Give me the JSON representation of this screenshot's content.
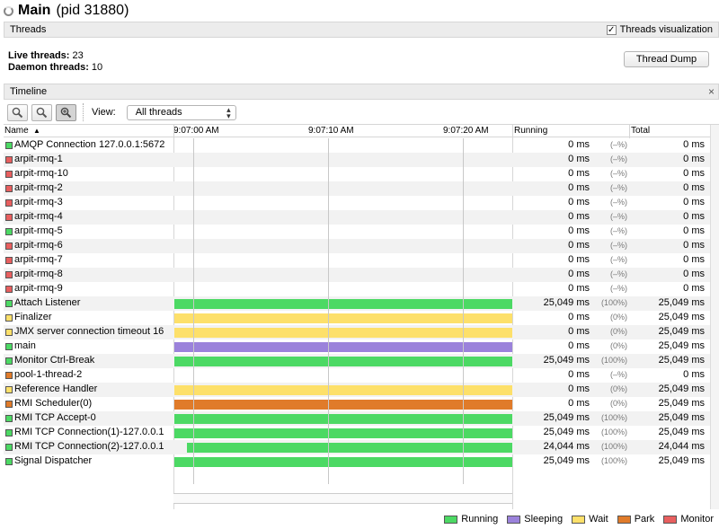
{
  "window": {
    "title": "Main",
    "pid": "(pid 31880)"
  },
  "threads_section": {
    "header": "Threads",
    "viz_checked": "✓",
    "viz_label": "Threads visualization",
    "live_label": "Live threads:",
    "live_value": "23",
    "daemon_label": "Daemon threads:",
    "daemon_value": "10",
    "thread_dump_label": "Thread Dump"
  },
  "timeline": {
    "header": "Timeline",
    "close_symbol": "×",
    "view_label": "View:",
    "view_value": "All threads",
    "columns": {
      "name": "Name",
      "running": "Running",
      "total": "Total"
    },
    "ticks": [
      "9:07:00 AM",
      "9:07:10 AM",
      "9:07:20 AM"
    ],
    "rows": [
      {
        "name": "AMQP Connection 127.0.0.1:5672",
        "state": "running",
        "running": "0 ms",
        "pct": "(–%)",
        "total": "0 ms",
        "bar": null
      },
      {
        "name": "arpit-rmq-1",
        "state": "monitor",
        "running": "0 ms",
        "pct": "(–%)",
        "total": "0 ms",
        "bar": null
      },
      {
        "name": "arpit-rmq-10",
        "state": "monitor",
        "running": "0 ms",
        "pct": "(–%)",
        "total": "0 ms",
        "bar": null
      },
      {
        "name": "arpit-rmq-2",
        "state": "monitor",
        "running": "0 ms",
        "pct": "(–%)",
        "total": "0 ms",
        "bar": null
      },
      {
        "name": "arpit-rmq-3",
        "state": "monitor",
        "running": "0 ms",
        "pct": "(–%)",
        "total": "0 ms",
        "bar": null
      },
      {
        "name": "arpit-rmq-4",
        "state": "monitor",
        "running": "0 ms",
        "pct": "(–%)",
        "total": "0 ms",
        "bar": null
      },
      {
        "name": "arpit-rmq-5",
        "state": "running",
        "running": "0 ms",
        "pct": "(–%)",
        "total": "0 ms",
        "bar": null
      },
      {
        "name": "arpit-rmq-6",
        "state": "monitor",
        "running": "0 ms",
        "pct": "(–%)",
        "total": "0 ms",
        "bar": null
      },
      {
        "name": "arpit-rmq-7",
        "state": "monitor",
        "running": "0 ms",
        "pct": "(–%)",
        "total": "0 ms",
        "bar": null
      },
      {
        "name": "arpit-rmq-8",
        "state": "monitor",
        "running": "0 ms",
        "pct": "(–%)",
        "total": "0 ms",
        "bar": null
      },
      {
        "name": "arpit-rmq-9",
        "state": "monitor",
        "running": "0 ms",
        "pct": "(–%)",
        "total": "0 ms",
        "bar": null
      },
      {
        "name": "Attach Listener",
        "state": "running",
        "running": "25,049 ms",
        "pct": "(100%)",
        "total": "25,049 ms",
        "bar": "running"
      },
      {
        "name": "Finalizer",
        "state": "wait",
        "running": "0 ms",
        "pct": "(0%)",
        "total": "25,049 ms",
        "bar": "wait"
      },
      {
        "name": "JMX server connection timeout 16",
        "state": "wait",
        "running": "0 ms",
        "pct": "(0%)",
        "total": "25,049 ms",
        "bar": "wait"
      },
      {
        "name": "main",
        "state": "running",
        "running": "0 ms",
        "pct": "(0%)",
        "total": "25,049 ms",
        "bar": "sleeping"
      },
      {
        "name": "Monitor Ctrl-Break",
        "state": "running",
        "running": "25,049 ms",
        "pct": "(100%)",
        "total": "25,049 ms",
        "bar": "running"
      },
      {
        "name": "pool-1-thread-2",
        "state": "park",
        "running": "0 ms",
        "pct": "(–%)",
        "total": "0 ms",
        "bar": null
      },
      {
        "name": "Reference Handler",
        "state": "wait",
        "running": "0 ms",
        "pct": "(0%)",
        "total": "25,049 ms",
        "bar": "wait"
      },
      {
        "name": "RMI Scheduler(0)",
        "state": "park",
        "running": "0 ms",
        "pct": "(0%)",
        "total": "25,049 ms",
        "bar": "park"
      },
      {
        "name": "RMI TCP Accept-0",
        "state": "running",
        "running": "25,049 ms",
        "pct": "(100%)",
        "total": "25,049 ms",
        "bar": "running"
      },
      {
        "name": "RMI TCP Connection(1)-127.0.0.1",
        "state": "running",
        "running": "25,049 ms",
        "pct": "(100%)",
        "total": "25,049 ms",
        "bar": "running"
      },
      {
        "name": "RMI TCP Connection(2)-127.0.0.1",
        "state": "running",
        "running": "24,044 ms",
        "pct": "(100%)",
        "total": "24,044 ms",
        "bar": "running_partial"
      },
      {
        "name": "Signal Dispatcher",
        "state": "running",
        "running": "25,049 ms",
        "pct": "(100%)",
        "total": "25,049 ms",
        "bar": "running"
      }
    ]
  },
  "legend": [
    {
      "label": "Running",
      "color": "#4cd964"
    },
    {
      "label": "Sleeping",
      "color": "#9b82db"
    },
    {
      "label": "Wait",
      "color": "#fde06a"
    },
    {
      "label": "Park",
      "color": "#e07b2a"
    },
    {
      "label": "Monitor",
      "color": "#e85f5f"
    }
  ],
  "colors": {
    "running": "#4cd964",
    "sleeping": "#9b82db",
    "wait": "#fde06a",
    "park": "#e07b2a",
    "monitor": "#e85f5f"
  },
  "icons": [
    "spinner-icon",
    "zoom-in-icon",
    "zoom-out-icon",
    "zoom-fit-icon",
    "chevron-updown-icon",
    "close-icon",
    "sort-ascending-icon"
  ]
}
